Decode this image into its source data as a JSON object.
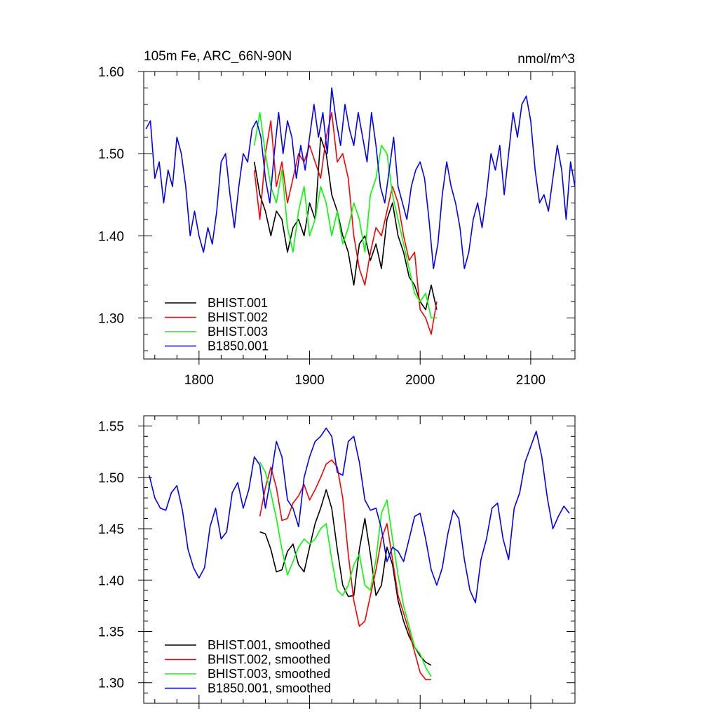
{
  "chart_data": [
    {
      "type": "line",
      "title": "105m Fe, ARC_66N-90N",
      "units": "nmol/m^3",
      "xlabel": "",
      "ylabel": "",
      "xlim": [
        1750,
        2140
      ],
      "ylim": [
        1.25,
        1.6
      ],
      "x_ticks": [
        1800,
        1900,
        2000,
        2100
      ],
      "x_tick_labels": [
        "1800",
        "1900",
        "2000",
        "2100"
      ],
      "y_ticks": [
        1.3,
        1.4,
        1.5,
        1.6
      ],
      "y_tick_labels": [
        "1.30",
        "1.40",
        "1.50",
        "1.60"
      ],
      "grid": false,
      "legend_position": "bottom-left",
      "series": [
        {
          "name": "BHIST.001",
          "color": "#000000",
          "x": [
            1850,
            1855,
            1860,
            1865,
            1870,
            1875,
            1880,
            1885,
            1890,
            1895,
            1900,
            1905,
            1910,
            1915,
            1920,
            1925,
            1930,
            1935,
            1940,
            1945,
            1950,
            1955,
            1960,
            1965,
            1970,
            1975,
            1980,
            1985,
            1990,
            1995,
            2000,
            2005,
            2010,
            2015
          ],
          "y": [
            1.49,
            1.45,
            1.43,
            1.4,
            1.43,
            1.42,
            1.38,
            1.41,
            1.42,
            1.4,
            1.44,
            1.42,
            1.52,
            1.5,
            1.45,
            1.43,
            1.4,
            1.38,
            1.34,
            1.39,
            1.4,
            1.37,
            1.39,
            1.36,
            1.42,
            1.44,
            1.4,
            1.38,
            1.35,
            1.34,
            1.32,
            1.31,
            1.34,
            1.31
          ]
        },
        {
          "name": "BHIST.002",
          "color": "#ff0000",
          "x": [
            1850,
            1855,
            1860,
            1865,
            1870,
            1875,
            1880,
            1885,
            1890,
            1895,
            1900,
            1905,
            1910,
            1915,
            1920,
            1925,
            1930,
            1935,
            1940,
            1945,
            1950,
            1955,
            1960,
            1965,
            1970,
            1975,
            1980,
            1985,
            1990,
            1995,
            2000,
            2005,
            2010,
            2015
          ],
          "y": [
            1.48,
            1.42,
            1.5,
            1.54,
            1.46,
            1.49,
            1.44,
            1.47,
            1.5,
            1.49,
            1.51,
            1.49,
            1.47,
            1.52,
            1.55,
            1.49,
            1.5,
            1.47,
            1.4,
            1.36,
            1.34,
            1.38,
            1.41,
            1.4,
            1.43,
            1.46,
            1.44,
            1.4,
            1.37,
            1.38,
            1.31,
            1.3,
            1.28,
            1.32
          ]
        },
        {
          "name": "BHIST.003",
          "color": "#00ff00",
          "x": [
            1850,
            1855,
            1860,
            1865,
            1870,
            1875,
            1880,
            1885,
            1890,
            1895,
            1900,
            1905,
            1910,
            1915,
            1920,
            1925,
            1930,
            1935,
            1940,
            1945,
            1950,
            1955,
            1960,
            1965,
            1970,
            1975,
            1980,
            1985,
            1990,
            1995,
            2000,
            2005,
            2010,
            2015
          ],
          "y": [
            1.51,
            1.55,
            1.5,
            1.46,
            1.44,
            1.48,
            1.41,
            1.38,
            1.43,
            1.46,
            1.4,
            1.42,
            1.46,
            1.44,
            1.4,
            1.43,
            1.39,
            1.41,
            1.44,
            1.42,
            1.38,
            1.45,
            1.47,
            1.51,
            1.5,
            1.45,
            1.42,
            1.39,
            1.36,
            1.33,
            1.32,
            1.33,
            1.3,
            1.3
          ]
        },
        {
          "name": "B1850.001",
          "color": "#0000ff",
          "x": [
            1752,
            1756,
            1760,
            1764,
            1768,
            1772,
            1776,
            1780,
            1784,
            1788,
            1792,
            1796,
            1800,
            1804,
            1808,
            1812,
            1816,
            1820,
            1824,
            1828,
            1832,
            1836,
            1840,
            1844,
            1848,
            1852,
            1856,
            1860,
            1864,
            1868,
            1872,
            1876,
            1880,
            1884,
            1888,
            1892,
            1896,
            1900,
            1904,
            1908,
            1912,
            1916,
            1920,
            1924,
            1928,
            1932,
            1936,
            1940,
            1944,
            1948,
            1952,
            1956,
            1960,
            1964,
            1968,
            1972,
            1976,
            1980,
            1984,
            1988,
            1992,
            1996,
            2000,
            2004,
            2008,
            2012,
            2016,
            2020,
            2024,
            2028,
            2032,
            2036,
            2040,
            2044,
            2048,
            2052,
            2056,
            2060,
            2064,
            2068,
            2072,
            2076,
            2080,
            2084,
            2088,
            2092,
            2096,
            2100,
            2104,
            2108,
            2112,
            2116,
            2120,
            2124,
            2128,
            2132,
            2136,
            2140
          ],
          "y": [
            1.53,
            1.54,
            1.47,
            1.49,
            1.44,
            1.48,
            1.46,
            1.52,
            1.5,
            1.46,
            1.4,
            1.43,
            1.4,
            1.38,
            1.41,
            1.39,
            1.43,
            1.49,
            1.5,
            1.45,
            1.41,
            1.46,
            1.5,
            1.49,
            1.53,
            1.54,
            1.52,
            1.47,
            1.44,
            1.5,
            1.55,
            1.5,
            1.54,
            1.52,
            1.47,
            1.51,
            1.48,
            1.52,
            1.56,
            1.52,
            1.55,
            1.5,
            1.58,
            1.54,
            1.51,
            1.56,
            1.53,
            1.51,
            1.55,
            1.52,
            1.49,
            1.55,
            1.51,
            1.46,
            1.44,
            1.48,
            1.52,
            1.46,
            1.44,
            1.42,
            1.46,
            1.48,
            1.49,
            1.47,
            1.42,
            1.36,
            1.39,
            1.45,
            1.49,
            1.46,
            1.44,
            1.41,
            1.36,
            1.38,
            1.42,
            1.44,
            1.41,
            1.45,
            1.5,
            1.48,
            1.51,
            1.45,
            1.5,
            1.55,
            1.52,
            1.56,
            1.57,
            1.54,
            1.48,
            1.44,
            1.45,
            1.43,
            1.47,
            1.51,
            1.48,
            1.42,
            1.49,
            1.46
          ]
        }
      ]
    },
    {
      "type": "line",
      "title": "",
      "xlabel": "",
      "ylabel": "",
      "xlim": [
        1750,
        2140
      ],
      "ylim": [
        1.28,
        1.56
      ],
      "x_ticks": [
        1800,
        1900,
        2000,
        2100
      ],
      "y_ticks": [
        1.3,
        1.35,
        1.4,
        1.45,
        1.5,
        1.55
      ],
      "y_tick_labels": [
        "1.30",
        "1.35",
        "1.40",
        "1.45",
        "1.50",
        "1.55"
      ],
      "grid": false,
      "legend_position": "bottom-left",
      "series": [
        {
          "name": "BHIST.001, smoothed",
          "color": "#000000",
          "x": [
            1855,
            1860,
            1865,
            1870,
            1875,
            1880,
            1885,
            1890,
            1895,
            1900,
            1905,
            1910,
            1915,
            1920,
            1925,
            1930,
            1935,
            1940,
            1945,
            1950,
            1955,
            1960,
            1965,
            1970,
            1975,
            1980,
            1985,
            1990,
            1995,
            2000,
            2005,
            2010
          ],
          "y": [
            1.447,
            1.445,
            1.43,
            1.408,
            1.41,
            1.428,
            1.435,
            1.415,
            1.408,
            1.432,
            1.455,
            1.47,
            1.488,
            1.47,
            1.43,
            1.395,
            1.384,
            1.385,
            1.43,
            1.46,
            1.425,
            1.385,
            1.395,
            1.432,
            1.415,
            1.38,
            1.36,
            1.345,
            1.335,
            1.326,
            1.32,
            1.317
          ]
        },
        {
          "name": "BHIST.002, smoothed",
          "color": "#ff0000",
          "x": [
            1855,
            1860,
            1865,
            1870,
            1875,
            1880,
            1885,
            1890,
            1895,
            1900,
            1905,
            1910,
            1915,
            1920,
            1925,
            1930,
            1935,
            1940,
            1945,
            1950,
            1955,
            1960,
            1965,
            1970,
            1975,
            1980,
            1985,
            1990,
            1995,
            2000,
            2005,
            2010
          ],
          "y": [
            1.462,
            1.49,
            1.51,
            1.49,
            1.458,
            1.46,
            1.475,
            1.482,
            1.493,
            1.478,
            1.488,
            1.5,
            1.513,
            1.517,
            1.51,
            1.48,
            1.425,
            1.38,
            1.355,
            1.36,
            1.385,
            1.41,
            1.44,
            1.455,
            1.42,
            1.385,
            1.368,
            1.35,
            1.33,
            1.31,
            1.303,
            1.303
          ]
        },
        {
          "name": "BHIST.003, smoothed",
          "color": "#00ff00",
          "x": [
            1855,
            1860,
            1865,
            1870,
            1875,
            1880,
            1885,
            1890,
            1895,
            1900,
            1905,
            1910,
            1915,
            1920,
            1925,
            1930,
            1935,
            1940,
            1945,
            1950,
            1955,
            1960,
            1965,
            1970,
            1975,
            1980,
            1985,
            1990,
            1995,
            2000,
            2005,
            2010
          ],
          "y": [
            1.515,
            1.505,
            1.485,
            1.46,
            1.43,
            1.405,
            1.418,
            1.432,
            1.44,
            1.435,
            1.44,
            1.45,
            1.455,
            1.42,
            1.39,
            1.385,
            1.395,
            1.415,
            1.425,
            1.395,
            1.39,
            1.42,
            1.465,
            1.478,
            1.44,
            1.405,
            1.375,
            1.355,
            1.335,
            1.328,
            1.315,
            1.306
          ]
        },
        {
          "name": "B1850.001, smoothed",
          "color": "#0000ff",
          "x": [
            1755,
            1760,
            1765,
            1770,
            1775,
            1780,
            1785,
            1790,
            1795,
            1800,
            1805,
            1810,
            1815,
            1820,
            1825,
            1830,
            1835,
            1840,
            1845,
            1850,
            1855,
            1860,
            1865,
            1870,
            1875,
            1880,
            1885,
            1890,
            1895,
            1900,
            1905,
            1910,
            1915,
            1920,
            1925,
            1930,
            1935,
            1940,
            1945,
            1950,
            1955,
            1960,
            1965,
            1970,
            1975,
            1980,
            1985,
            1990,
            1995,
            2000,
            2005,
            2010,
            2015,
            2020,
            2025,
            2030,
            2035,
            2040,
            2045,
            2050,
            2055,
            2060,
            2065,
            2070,
            2075,
            2080,
            2085,
            2090,
            2095,
            2100,
            2105,
            2110,
            2115,
            2120,
            2125,
            2130,
            2135
          ],
          "y": [
            1.502,
            1.48,
            1.47,
            1.468,
            1.485,
            1.492,
            1.468,
            1.43,
            1.412,
            1.402,
            1.412,
            1.452,
            1.47,
            1.44,
            1.447,
            1.485,
            1.495,
            1.47,
            1.488,
            1.52,
            1.512,
            1.47,
            1.5,
            1.535,
            1.52,
            1.478,
            1.47,
            1.452,
            1.5,
            1.52,
            1.535,
            1.54,
            1.548,
            1.54,
            1.505,
            1.502,
            1.535,
            1.54,
            1.515,
            1.478,
            1.468,
            1.47,
            1.45,
            1.418,
            1.432,
            1.428,
            1.418,
            1.44,
            1.462,
            1.465,
            1.44,
            1.41,
            1.395,
            1.412,
            1.445,
            1.468,
            1.46,
            1.42,
            1.39,
            1.378,
            1.42,
            1.44,
            1.47,
            1.475,
            1.44,
            1.42,
            1.47,
            1.485,
            1.515,
            1.53,
            1.545,
            1.52,
            1.48,
            1.45,
            1.462,
            1.472,
            1.465
          ]
        }
      ]
    }
  ]
}
